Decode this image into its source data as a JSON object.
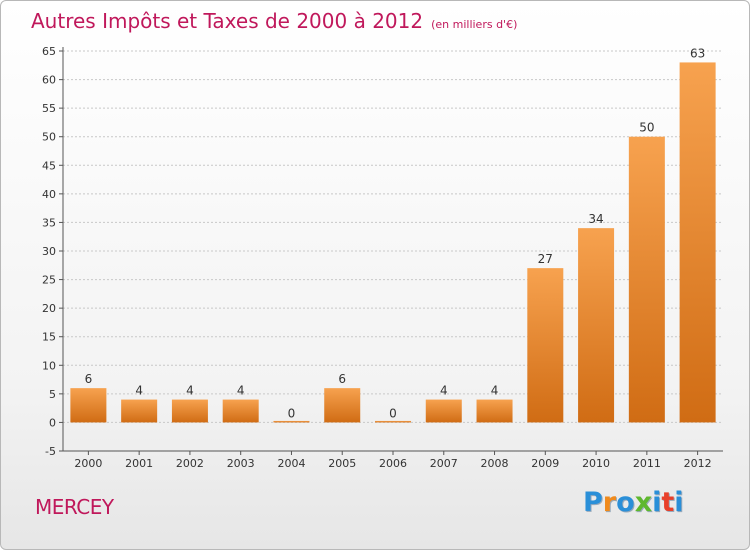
{
  "title": {
    "main": "Autres Impôts et Taxes de 2000 à 2012",
    "unit": "(en milliers d'€)"
  },
  "city": "MERCEY",
  "logo": {
    "letters": [
      "P",
      "r",
      "o",
      "x",
      "i",
      "t",
      "i"
    ],
    "colors": [
      "#2a8fd8",
      "#f08a1c",
      "#2a8fd8",
      "#5fb82e",
      "#2a8fd8",
      "#e8402a",
      "#2a8fd8"
    ]
  },
  "chart_data": {
    "type": "bar",
    "categories": [
      "2000",
      "2001",
      "2002",
      "2003",
      "2004",
      "2005",
      "2006",
      "2007",
      "2008",
      "2009",
      "2010",
      "2011",
      "2012"
    ],
    "values": [
      6,
      4,
      4,
      4,
      0,
      6,
      0,
      4,
      4,
      27,
      34,
      50,
      63
    ],
    "ylim": [
      -5,
      65
    ],
    "yticks": [
      -5,
      0,
      5,
      10,
      15,
      20,
      25,
      30,
      35,
      40,
      45,
      50,
      55,
      60,
      65
    ],
    "grid": "horizontal dashed",
    "bar_color": "#f08a2a"
  }
}
